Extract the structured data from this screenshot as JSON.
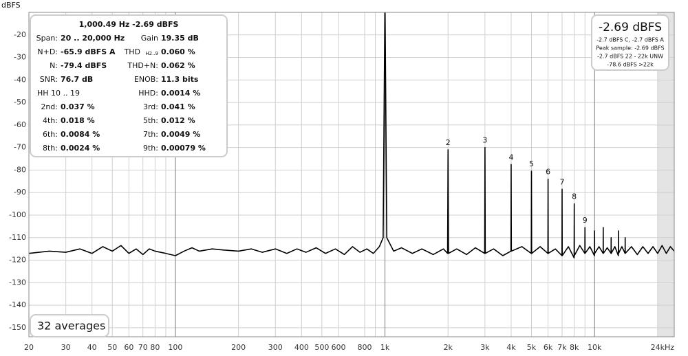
{
  "chart_data": {
    "type": "line",
    "y_label": "dBFS",
    "log_x": true,
    "grid": true,
    "xlim": [
      20,
      24000
    ],
    "ylim": [
      -154,
      -10
    ],
    "xticks": [
      20,
      30,
      40,
      50,
      60,
      70,
      80,
      100,
      200,
      300,
      400,
      500,
      600,
      800,
      {
        "value": 1000,
        "label": "1k"
      },
      {
        "value": 2000,
        "label": "2k"
      },
      {
        "value": 3000,
        "label": "3k"
      },
      {
        "value": 4000,
        "label": "4k"
      },
      {
        "value": 5000,
        "label": "5k"
      },
      {
        "value": 6000,
        "label": "6k"
      },
      {
        "value": 7000,
        "label": "7k"
      },
      {
        "value": 8000,
        "label": "8k"
      },
      {
        "value": 10000,
        "label": "10k"
      },
      {
        "value": 24000,
        "label": "24kHz"
      }
    ],
    "x_grid_extra": [
      90,
      900,
      9000,
      20000
    ],
    "shade_from": 20000,
    "yticks": [
      -20,
      -30,
      -40,
      -50,
      -60,
      -70,
      -80,
      -90,
      -100,
      -110,
      -120,
      -130,
      -140,
      -150
    ],
    "x": [
      20,
      25,
      30,
      35,
      40,
      45,
      50,
      55,
      60,
      65,
      70,
      75,
      80,
      90,
      100,
      110,
      120,
      130,
      150,
      170,
      200,
      230,
      260,
      300,
      340,
      380,
      420,
      470,
      520,
      580,
      640,
      700,
      760,
      820,
      880,
      940,
      980,
      1000,
      1020,
      1100,
      1200,
      1350,
      1500,
      1700,
      1900,
      1990,
      2000,
      2010,
      2200,
      2450,
      2700,
      2990,
      3000,
      3010,
      3300,
      3650,
      3990,
      4000,
      4010,
      4500,
      4990,
      5000,
      5010,
      5500,
      5990,
      6000,
      6010,
      6500,
      6990,
      7000,
      7010,
      7500,
      7990,
      8000,
      8010,
      8500,
      8990,
      9000,
      9010,
      9500,
      9990,
      10000,
      10010,
      10500,
      10990,
      11000,
      11010,
      11500,
      11990,
      12000,
      12010,
      12500,
      12990,
      13000,
      13010,
      13500,
      13990,
      14000,
      14010,
      15000,
      16000,
      17000,
      18000,
      19000,
      20000,
      21000,
      22000,
      23000,
      24000
    ],
    "series": [
      {
        "name": "Spectrum",
        "color": "#000000",
        "values": [
          -117,
          -116,
          -116.5,
          -115,
          -117,
          -114,
          -116,
          -113.5,
          -117,
          -115,
          -117.5,
          -115,
          -116,
          -117,
          -118,
          -116,
          -114.5,
          -116,
          -115,
          -115.5,
          -116,
          -115,
          -116.5,
          -115,
          -117,
          -115,
          -116.5,
          -114.5,
          -117,
          -115,
          -117.5,
          -114,
          -116.5,
          -115,
          -117,
          -114,
          -110,
          -2.69,
          -110,
          -116,
          -114.5,
          -117,
          -115,
          -117.5,
          -115,
          -117,
          -71,
          -117,
          -115,
          -117.5,
          -114.5,
          -117,
          -70,
          -117,
          -115,
          -118,
          -116,
          -77.5,
          -116,
          -114,
          -117,
          -80.5,
          -117,
          -114,
          -117,
          -84,
          -117,
          -115,
          -118,
          -88.5,
          -118,
          -114,
          -119,
          -95,
          -118,
          -113.5,
          -117,
          -105.5,
          -117,
          -114,
          -118,
          -107,
          -117,
          -114,
          -117,
          -105.5,
          -117,
          -114.5,
          -117,
          -110,
          -117,
          -114,
          -118,
          -107,
          -117,
          -114,
          -117,
          -110,
          -117,
          -114,
          -117.5,
          -114,
          -117,
          -114,
          -117,
          -113.5,
          -117,
          -114,
          -116
        ]
      }
    ],
    "annotations": [
      {
        "text": "2",
        "x": 2000,
        "y": -71
      },
      {
        "text": "3",
        "x": 3000,
        "y": -70
      },
      {
        "text": "4",
        "x": 4000,
        "y": -77.5
      },
      {
        "text": "5",
        "x": 5000,
        "y": -80.5
      },
      {
        "text": "6",
        "x": 6000,
        "y": -84
      },
      {
        "text": "7",
        "x": 7000,
        "y": -88.5
      },
      {
        "text": "8",
        "x": 8000,
        "y": -95
      },
      {
        "text": "9",
        "x": 9000,
        "y": -105.5
      }
    ]
  },
  "info_panel": {
    "header": "1,000.49 Hz  -2.69 dBFS",
    "rows": [
      [
        {
          "label": "Span:",
          "value": "20 .. 20,000 Hz"
        },
        {
          "label": "Gain",
          "value": "19.35 dB"
        }
      ],
      [
        {
          "label": "N+D:",
          "value": "-65.9 dBFS A"
        },
        {
          "label": "THD",
          "sub": "H2..9",
          "value": "0.060 %"
        }
      ],
      [
        {
          "label": "N:",
          "value": "-79.4 dBFS"
        },
        {
          "label": "THD+N:",
          "value": "0.062 %"
        }
      ],
      [
        {
          "label": "SNR:",
          "value": "76.7 dB"
        },
        {
          "label": "ENOB:",
          "value": "11.3 bits"
        }
      ],
      [
        {
          "label": "HH 10 .. 19"
        },
        {
          "label": "HHD:",
          "value": "0.0014 %"
        }
      ],
      [
        {
          "label": "2nd:",
          "value": "0.037 %"
        },
        {
          "label": "3rd:",
          "value": "0.041 %"
        }
      ],
      [
        {
          "label": "4th:",
          "value": "0.018 %"
        },
        {
          "label": "5th:",
          "value": "0.012 %"
        }
      ],
      [
        {
          "label": "6th:",
          "value": "0.0084 %"
        },
        {
          "label": "7th:",
          "value": "0.0049 %"
        }
      ],
      [
        {
          "label": "8th:",
          "value": "0.0024 %"
        },
        {
          "label": "9th:",
          "value": "0.00079 %"
        }
      ]
    ]
  },
  "level_panel": {
    "level": "-2.69 dBFS",
    "lines": [
      "-2.7 dBFS C, -2.7 dBFS A",
      "Peak sample: -2.69 dBFS",
      "-2.7 dBFS 22 - 22k UNW",
      "-78.6 dBFS >22k"
    ]
  },
  "averages": "32 averages"
}
